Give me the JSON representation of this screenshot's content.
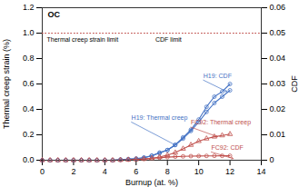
{
  "chart_data": {
    "type": "line",
    "title": "OC",
    "xlabel": "Burnup (at. %)",
    "ylabel": "Thermal creep strain (%)",
    "y2label": "CDF",
    "xlim": [
      0,
      14
    ],
    "xticks": [
      0,
      2,
      4,
      6,
      8,
      10,
      12,
      14
    ],
    "ylim": [
      0,
      1.2
    ],
    "yticks": [
      {
        "value": 0,
        "label": "0.0"
      },
      0.2,
      0.4,
      0.6,
      0.8,
      {
        "value": 1.0,
        "label": "1.0"
      },
      1.2
    ],
    "y2lim": [
      0,
      0.06
    ],
    "y2ticks": [
      0,
      0.01,
      0.02,
      0.03,
      0.04,
      0.05,
      0.06
    ],
    "x": [
      0.0,
      0.5,
      1.0,
      1.5,
      2.0,
      2.5,
      3.0,
      3.5,
      4.0,
      4.5,
      5.0,
      5.5,
      6.0,
      6.5,
      7.0,
      7.5,
      8.0,
      8.5,
      9.0,
      9.5,
      10.0,
      10.5,
      11.0,
      11.5,
      12.0
    ],
    "series": [
      {
        "name": "H19: Thermal creep",
        "color": "#4472C4",
        "marker": "circle",
        "line_style": "solid",
        "axis": "y",
        "values": [
          0.0,
          0.0,
          0.0,
          0.0,
          0.0,
          0.0,
          0.0,
          0.0,
          0.0,
          0.0,
          0.005,
          0.008,
          0.012,
          0.02,
          0.035,
          0.055,
          0.08,
          0.12,
          0.17,
          0.23,
          0.3,
          0.38,
          0.45,
          0.5,
          0.55
        ],
        "annotation": {
          "x": 8.5,
          "y": 0.12,
          "text_x": 5.7,
          "text_y": 0.3
        }
      },
      {
        "name": "FC92: Thermal creep",
        "color": "#C0504D",
        "marker": "triangle",
        "line_style": "solid",
        "axis": "y",
        "values": [
          0.0,
          0.0,
          0.0,
          0.0,
          0.0,
          0.0,
          0.0,
          0.0,
          0.0,
          0.0,
          0.002,
          0.004,
          0.007,
          0.01,
          0.015,
          0.025,
          0.04,
          0.06,
          0.09,
          0.12,
          0.15,
          0.17,
          0.185,
          0.195,
          0.205
        ],
        "annotation": {
          "x": 11.2,
          "y": 0.185,
          "text_x": 9.5,
          "text_y": 0.26
        }
      },
      {
        "name": "H19: CDF",
        "color": "#4472C4",
        "marker": "circle",
        "line_style": "solid",
        "axis": "y2",
        "values": [
          0.0,
          0.0,
          0.0,
          0.0,
          0.0,
          0.0,
          0.0,
          0.0,
          0.0,
          0.0,
          0.0002,
          0.0004,
          0.0006,
          0.001,
          0.0018,
          0.003,
          0.004,
          0.006,
          0.009,
          0.012,
          0.016,
          0.021,
          0.025,
          0.027,
          0.03
        ],
        "annotation": {
          "x": 11.8,
          "y": 0.54,
          "text_x": 10.3,
          "text_y": 0.63
        }
      },
      {
        "name": "FC92: CDF",
        "color": "#C0504D",
        "marker": "circle",
        "line_style": "solid",
        "axis": "y2",
        "values": [
          0.0,
          0.0,
          0.0,
          0.0,
          0.0,
          0.0,
          0.0,
          0.0,
          0.0,
          0.0,
          0.0001,
          0.0002,
          0.0003,
          0.0005,
          0.0007,
          0.001,
          0.0012,
          0.0014,
          0.0015,
          0.0016,
          0.00165,
          0.0017,
          0.00172,
          0.00173,
          0.00174
        ],
        "annotation": {
          "x": 12.2,
          "y": 0.013,
          "text_x": 10.8,
          "text_y": 0.065
        }
      }
    ],
    "reference_lines": [
      {
        "axis": "y",
        "value": 1.0,
        "label": "Thermal creep strain limit",
        "color": "#C0504D",
        "line_style": "dotted"
      },
      {
        "axis": "y2",
        "value": 0.05,
        "label": "CDF limit",
        "color": "#C0504D",
        "line_style": "dotted"
      }
    ]
  }
}
